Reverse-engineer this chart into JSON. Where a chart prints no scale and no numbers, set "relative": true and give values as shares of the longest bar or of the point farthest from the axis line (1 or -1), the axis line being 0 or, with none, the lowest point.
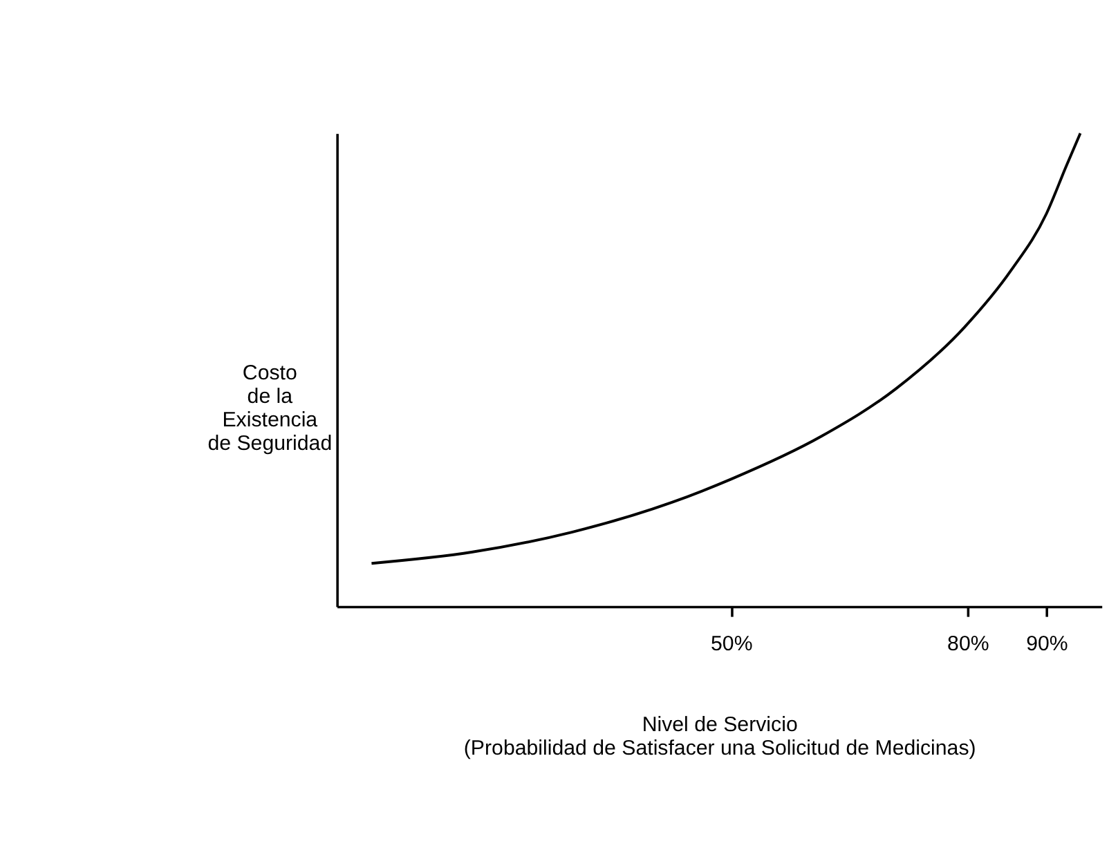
{
  "chart_data": {
    "type": "line",
    "relative": true,
    "xlabel": "Nivel de Servicio\n(Probabilidad de Satisfacer una Solicitud de Medicinas)",
    "ylabel": "Costo\nde la\nExistencia\nde Seguridad",
    "xlim": [
      0,
      97
    ],
    "xticks": [
      {
        "value": 50,
        "label": "50%"
      },
      {
        "value": 80,
        "label": "80%"
      },
      {
        "value": 90,
        "label": "90%"
      }
    ],
    "grid": false,
    "marker": "none",
    "line_style": "solid",
    "x": [
      4.4,
      17.2,
      29.8,
      42.5,
      50,
      61.5,
      70.9,
      79.6,
      85.5,
      90,
      92.5,
      94.3
    ],
    "series": [
      {
        "color": "#000000",
        "values": [
          0.091,
          0.115,
          0.157,
          0.22,
          0.269,
          0.36,
          0.46,
          0.59,
          0.71,
          0.83,
          0.93,
          1.0
        ]
      }
    ]
  }
}
